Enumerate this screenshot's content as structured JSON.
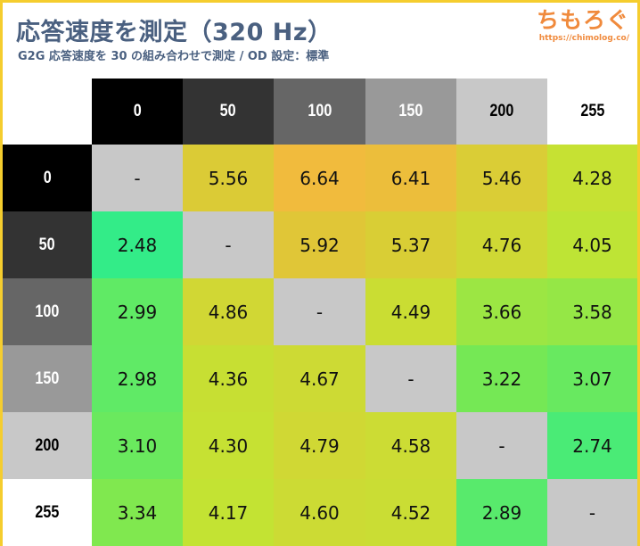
{
  "header": {
    "title": "応答速度を測定（320 Hz）",
    "subtitle": "G2G 応答速度を 30 の組み合わせで測定 / OD 設定：標準",
    "logo_text": "ちもろぐ",
    "logo_url": "https://chimolog.co/"
  },
  "chart_data": {
    "type": "heatmap",
    "title": "応答速度を測定（320 Hz）",
    "subtitle": "G2G 応答速度を 30 の組み合わせで測定 / OD 設定：標準",
    "columns": [
      "0",
      "50",
      "100",
      "150",
      "200",
      "255"
    ],
    "rows": [
      "0",
      "50",
      "100",
      "150",
      "200",
      "255"
    ],
    "header_colors": [
      "#000000",
      "#333333",
      "#666666",
      "#999999",
      "#c8c8c8",
      "#ffffff"
    ],
    "header_text_colors": [
      "#ffffff",
      "#ffffff",
      "#ffffff",
      "#ffffff",
      "#000000",
      "#000000"
    ],
    "values": [
      [
        null,
        5.56,
        6.64,
        6.41,
        5.46,
        4.28
      ],
      [
        2.48,
        null,
        5.92,
        5.37,
        4.76,
        4.05
      ],
      [
        2.99,
        4.86,
        null,
        4.49,
        3.66,
        3.58
      ],
      [
        2.98,
        4.36,
        4.67,
        null,
        3.22,
        3.07
      ],
      [
        3.1,
        4.3,
        4.79,
        4.58,
        null,
        2.74
      ],
      [
        3.34,
        4.17,
        4.6,
        4.52,
        2.89,
        null
      ]
    ],
    "labels": [
      [
        "-",
        "5.56",
        "6.64",
        "6.41",
        "5.46",
        "4.28"
      ],
      [
        "2.48",
        "-",
        "5.92",
        "5.37",
        "4.76",
        "4.05"
      ],
      [
        "2.99",
        "4.86",
        "-",
        "4.49",
        "3.66",
        "3.58"
      ],
      [
        "2.98",
        "4.36",
        "4.67",
        "-",
        "3.22",
        "3.07"
      ],
      [
        "3.10",
        "4.30",
        "4.79",
        "4.58",
        "-",
        "2.74"
      ],
      [
        "3.34",
        "4.17",
        "4.60",
        "4.52",
        "2.89",
        "-"
      ]
    ],
    "empty_color": "#c8c8c8",
    "color_scale": [
      {
        "value": 2.48,
        "color": "#33ec88"
      },
      {
        "value": 3.3,
        "color": "#7ce850"
      },
      {
        "value": 4.1,
        "color": "#c2e433"
      },
      {
        "value": 4.9,
        "color": "#d2d634"
      },
      {
        "value": 5.9,
        "color": "#e0c637"
      },
      {
        "value": 6.64,
        "color": "#f1bb3d"
      }
    ]
  }
}
